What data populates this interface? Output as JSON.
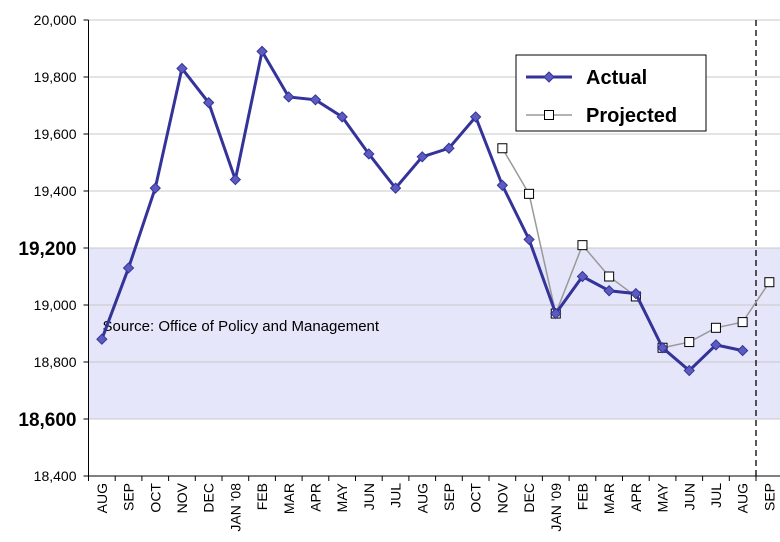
{
  "chart_data": {
    "type": "line",
    "categories": [
      "AUG",
      "SEP",
      "OCT",
      "NOV",
      "DEC",
      "JAN '08",
      "FEB",
      "MAR",
      "APR",
      "MAY",
      "JUN",
      "JUL",
      "AUG",
      "SEP",
      "OCT",
      "NOV",
      "DEC",
      "JAN '09",
      "FEB",
      "MAR",
      "APR",
      "MAY",
      "JUN",
      "JUL",
      "AUG",
      "SEP"
    ],
    "series": [
      {
        "name": "Actual",
        "color": "#333399",
        "marker": "diamond",
        "values": [
          18880,
          19130,
          19410,
          19830,
          19710,
          19440,
          19890,
          19730,
          19720,
          19660,
          19530,
          19410,
          19520,
          19550,
          19660,
          19420,
          19230,
          18970,
          19100,
          19050,
          19040,
          18850,
          18770,
          18860,
          18840,
          null
        ]
      },
      {
        "name": "Projected",
        "color": "#999999",
        "marker": "square",
        "values": [
          null,
          null,
          null,
          null,
          null,
          null,
          null,
          null,
          null,
          null,
          null,
          null,
          null,
          null,
          null,
          19550,
          19390,
          18970,
          19210,
          19100,
          19030,
          18850,
          18870,
          18920,
          18940,
          19080
        ]
      }
    ],
    "ylim": [
      18400,
      20000
    ],
    "yticks": [
      {
        "value": 18400,
        "label": "18,400"
      },
      {
        "value": 18600,
        "label": "18,600"
      },
      {
        "value": 18800,
        "label": "18,800"
      },
      {
        "value": 19000,
        "label": "19,000"
      },
      {
        "value": 19200,
        "label": "19,200"
      },
      {
        "value": 19400,
        "label": "19,400"
      },
      {
        "value": 19600,
        "label": "19,600"
      },
      {
        "value": 19800,
        "label": "19,800"
      },
      {
        "value": 20000,
        "label": "20,000"
      }
    ],
    "band": [
      18600,
      19200
    ],
    "band_color": "#e6e6fa",
    "grid": true,
    "legend": "top-right",
    "annotation": "Source: Office of Policy and Management"
  }
}
